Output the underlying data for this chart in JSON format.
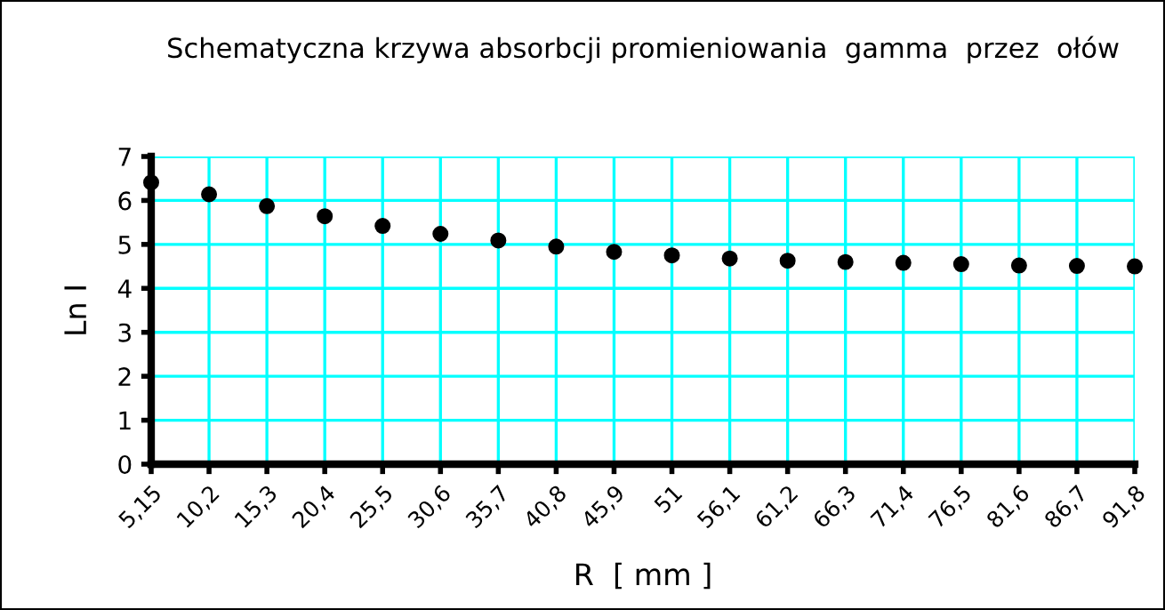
{
  "chart_data": {
    "type": "scatter",
    "title": "Schematyczna krzywa absorbcji promieniowania  gamma  przez  ołów",
    "xlabel": "R  [ mm ]",
    "ylabel": "Ln I",
    "categories": [
      "5,15",
      "10,2",
      "15,3",
      "20,4",
      "25,5",
      "30,6",
      "35,7",
      "40,8",
      "45,9",
      "51",
      "56,1",
      "61,2",
      "66,3",
      "71,4",
      "76,5",
      "81,6",
      "86,7",
      "91,8"
    ],
    "series": [
      {
        "color": "#000000",
        "values": [
          6.41,
          6.14,
          5.87,
          5.64,
          5.42,
          5.24,
          5.09,
          4.95,
          4.83,
          4.75,
          4.68,
          4.63,
          4.6,
          4.58,
          4.55,
          4.52,
          4.51,
          4.5
        ]
      }
    ],
    "ylim": [
      0,
      7
    ],
    "yticks": [
      0,
      1,
      2,
      3,
      4,
      5,
      6,
      7
    ],
    "grid": true,
    "marker": "circle"
  }
}
